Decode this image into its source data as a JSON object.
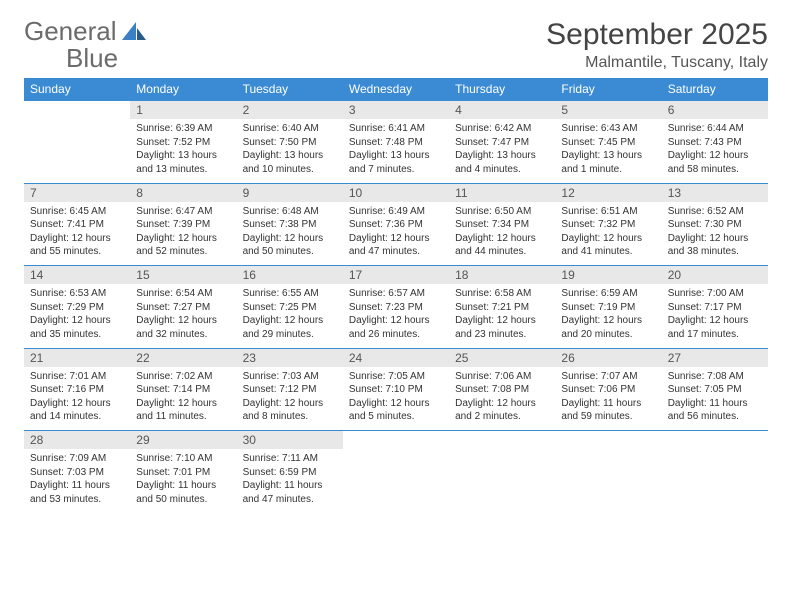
{
  "logo": {
    "word1": "General",
    "word2": "Blue"
  },
  "title": "September 2025",
  "location": "Malmantile, Tuscany, Italy",
  "colors": {
    "header_bg": "#3b8bd4",
    "header_text": "#ffffff",
    "daynum_bg": "#e8e8e8",
    "border": "#3b8bd4",
    "logo_gray": "#6b6b6b",
    "logo_blue": "#3b7fc4"
  },
  "day_headers": [
    "Sunday",
    "Monday",
    "Tuesday",
    "Wednesday",
    "Thursday",
    "Friday",
    "Saturday"
  ],
  "weeks": [
    [
      {
        "n": "",
        "lines": []
      },
      {
        "n": "1",
        "lines": [
          "Sunrise: 6:39 AM",
          "Sunset: 7:52 PM",
          "Daylight: 13 hours and 13 minutes."
        ]
      },
      {
        "n": "2",
        "lines": [
          "Sunrise: 6:40 AM",
          "Sunset: 7:50 PM",
          "Daylight: 13 hours and 10 minutes."
        ]
      },
      {
        "n": "3",
        "lines": [
          "Sunrise: 6:41 AM",
          "Sunset: 7:48 PM",
          "Daylight: 13 hours and 7 minutes."
        ]
      },
      {
        "n": "4",
        "lines": [
          "Sunrise: 6:42 AM",
          "Sunset: 7:47 PM",
          "Daylight: 13 hours and 4 minutes."
        ]
      },
      {
        "n": "5",
        "lines": [
          "Sunrise: 6:43 AM",
          "Sunset: 7:45 PM",
          "Daylight: 13 hours and 1 minute."
        ]
      },
      {
        "n": "6",
        "lines": [
          "Sunrise: 6:44 AM",
          "Sunset: 7:43 PM",
          "Daylight: 12 hours and 58 minutes."
        ]
      }
    ],
    [
      {
        "n": "7",
        "lines": [
          "Sunrise: 6:45 AM",
          "Sunset: 7:41 PM",
          "Daylight: 12 hours and 55 minutes."
        ]
      },
      {
        "n": "8",
        "lines": [
          "Sunrise: 6:47 AM",
          "Sunset: 7:39 PM",
          "Daylight: 12 hours and 52 minutes."
        ]
      },
      {
        "n": "9",
        "lines": [
          "Sunrise: 6:48 AM",
          "Sunset: 7:38 PM",
          "Daylight: 12 hours and 50 minutes."
        ]
      },
      {
        "n": "10",
        "lines": [
          "Sunrise: 6:49 AM",
          "Sunset: 7:36 PM",
          "Daylight: 12 hours and 47 minutes."
        ]
      },
      {
        "n": "11",
        "lines": [
          "Sunrise: 6:50 AM",
          "Sunset: 7:34 PM",
          "Daylight: 12 hours and 44 minutes."
        ]
      },
      {
        "n": "12",
        "lines": [
          "Sunrise: 6:51 AM",
          "Sunset: 7:32 PM",
          "Daylight: 12 hours and 41 minutes."
        ]
      },
      {
        "n": "13",
        "lines": [
          "Sunrise: 6:52 AM",
          "Sunset: 7:30 PM",
          "Daylight: 12 hours and 38 minutes."
        ]
      }
    ],
    [
      {
        "n": "14",
        "lines": [
          "Sunrise: 6:53 AM",
          "Sunset: 7:29 PM",
          "Daylight: 12 hours and 35 minutes."
        ]
      },
      {
        "n": "15",
        "lines": [
          "Sunrise: 6:54 AM",
          "Sunset: 7:27 PM",
          "Daylight: 12 hours and 32 minutes."
        ]
      },
      {
        "n": "16",
        "lines": [
          "Sunrise: 6:55 AM",
          "Sunset: 7:25 PM",
          "Daylight: 12 hours and 29 minutes."
        ]
      },
      {
        "n": "17",
        "lines": [
          "Sunrise: 6:57 AM",
          "Sunset: 7:23 PM",
          "Daylight: 12 hours and 26 minutes."
        ]
      },
      {
        "n": "18",
        "lines": [
          "Sunrise: 6:58 AM",
          "Sunset: 7:21 PM",
          "Daylight: 12 hours and 23 minutes."
        ]
      },
      {
        "n": "19",
        "lines": [
          "Sunrise: 6:59 AM",
          "Sunset: 7:19 PM",
          "Daylight: 12 hours and 20 minutes."
        ]
      },
      {
        "n": "20",
        "lines": [
          "Sunrise: 7:00 AM",
          "Sunset: 7:17 PM",
          "Daylight: 12 hours and 17 minutes."
        ]
      }
    ],
    [
      {
        "n": "21",
        "lines": [
          "Sunrise: 7:01 AM",
          "Sunset: 7:16 PM",
          "Daylight: 12 hours and 14 minutes."
        ]
      },
      {
        "n": "22",
        "lines": [
          "Sunrise: 7:02 AM",
          "Sunset: 7:14 PM",
          "Daylight: 12 hours and 11 minutes."
        ]
      },
      {
        "n": "23",
        "lines": [
          "Sunrise: 7:03 AM",
          "Sunset: 7:12 PM",
          "Daylight: 12 hours and 8 minutes."
        ]
      },
      {
        "n": "24",
        "lines": [
          "Sunrise: 7:05 AM",
          "Sunset: 7:10 PM",
          "Daylight: 12 hours and 5 minutes."
        ]
      },
      {
        "n": "25",
        "lines": [
          "Sunrise: 7:06 AM",
          "Sunset: 7:08 PM",
          "Daylight: 12 hours and 2 minutes."
        ]
      },
      {
        "n": "26",
        "lines": [
          "Sunrise: 7:07 AM",
          "Sunset: 7:06 PM",
          "Daylight: 11 hours and 59 minutes."
        ]
      },
      {
        "n": "27",
        "lines": [
          "Sunrise: 7:08 AM",
          "Sunset: 7:05 PM",
          "Daylight: 11 hours and 56 minutes."
        ]
      }
    ],
    [
      {
        "n": "28",
        "lines": [
          "Sunrise: 7:09 AM",
          "Sunset: 7:03 PM",
          "Daylight: 11 hours and 53 minutes."
        ]
      },
      {
        "n": "29",
        "lines": [
          "Sunrise: 7:10 AM",
          "Sunset: 7:01 PM",
          "Daylight: 11 hours and 50 minutes."
        ]
      },
      {
        "n": "30",
        "lines": [
          "Sunrise: 7:11 AM",
          "Sunset: 6:59 PM",
          "Daylight: 11 hours and 47 minutes."
        ]
      },
      {
        "n": "",
        "lines": []
      },
      {
        "n": "",
        "lines": []
      },
      {
        "n": "",
        "lines": []
      },
      {
        "n": "",
        "lines": []
      }
    ]
  ]
}
